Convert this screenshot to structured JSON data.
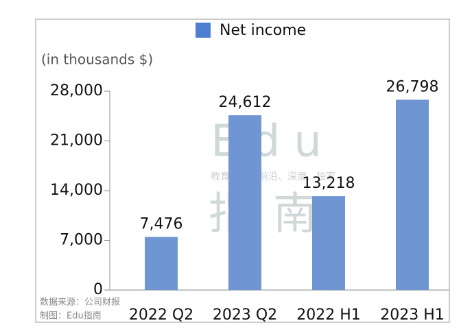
{
  "chart_data": {
    "type": "bar",
    "legend_label": "Net income",
    "subtitle": "(in thousands $)",
    "categories": [
      "2022 Q2",
      "2023 Q2",
      "2022 H1",
      "2023 H1"
    ],
    "values": [
      7476,
      24612,
      13218,
      26798
    ],
    "value_labels": [
      "7,476",
      "24,612",
      "13,218",
      "26,798"
    ],
    "color": "#6f96d2",
    "ylim": [
      0,
      28000
    ],
    "yticks": [
      0,
      {
        "value": 7000,
        "label": "7,000"
      },
      {
        "value": 14000,
        "label": "14,000"
      },
      {
        "value": 21000,
        "label": "21,000"
      },
      {
        "value": 28000,
        "label": "28,000"
      }
    ],
    "watermark": [
      "Edu",
      "教育行业，前沿、深度、独家",
      "指南"
    ],
    "source": "数据来源：公司财报",
    "credit": "制图：Edu指南"
  }
}
